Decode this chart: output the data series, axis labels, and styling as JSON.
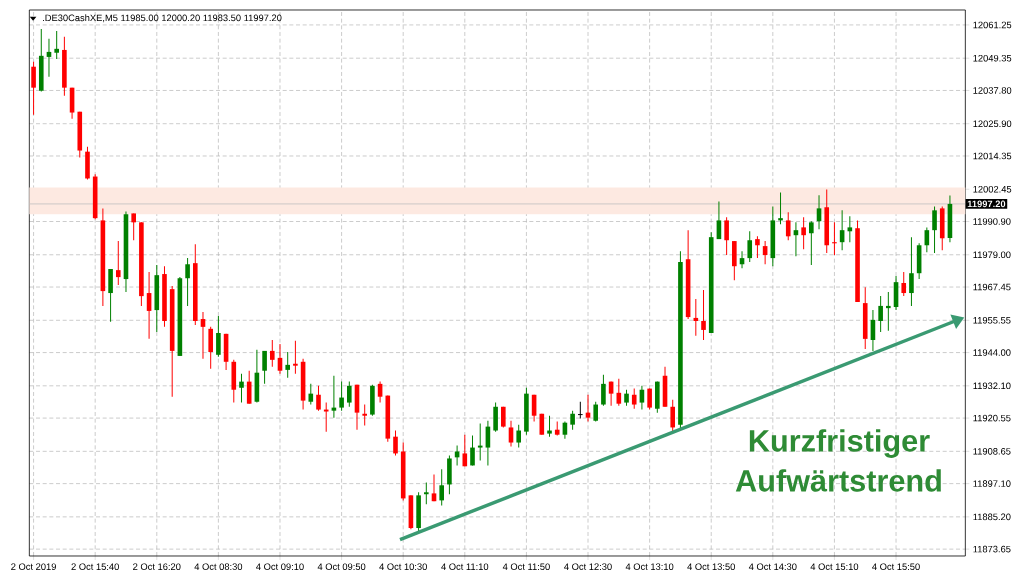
{
  "chart_data": {
    "type": "candlestick",
    "title": ".DE30CashXE,M5  11985.00 12000.20 11983.50 11997.20",
    "categories": [
      "2 Oct 2019",
      null,
      null,
      null,
      null,
      null,
      null,
      null,
      "2 Oct 15:40",
      null,
      null,
      null,
      null,
      null,
      null,
      null,
      "2 Oct 16:20",
      null,
      null,
      null,
      null,
      null,
      null,
      null,
      "4 Oct 08:30",
      null,
      null,
      null,
      null,
      null,
      null,
      null,
      "4 Oct 09:10",
      null,
      null,
      null,
      null,
      null,
      null,
      null,
      "4 Oct 09:50",
      null,
      null,
      null,
      null,
      null,
      null,
      null,
      "4 Oct 10:30",
      null,
      null,
      null,
      null,
      null,
      null,
      null,
      "4 Oct 11:10",
      null,
      null,
      null,
      null,
      null,
      null,
      null,
      "4 Oct 11:50",
      null,
      null,
      null,
      null,
      null,
      null,
      null,
      "4 Oct 12:30",
      null,
      null,
      null,
      null,
      null,
      null,
      null,
      "4 Oct 13:10",
      null,
      null,
      null,
      null,
      null,
      null,
      null,
      "4 Oct 13:50",
      null,
      null,
      null,
      null,
      null,
      null,
      null,
      "4 Oct 14:30",
      null,
      null,
      null,
      null,
      null,
      null,
      null,
      "4 Oct 15:10",
      null,
      null,
      null,
      null,
      null,
      null,
      null,
      "4 Oct 15:50",
      null,
      null,
      null,
      null,
      null,
      null,
      null
    ],
    "ohlc": [
      [
        12046.3,
        12048.1,
        12029.1,
        12038.8
      ],
      [
        12037.7,
        12059.8,
        12037.4,
        12050.2
      ],
      [
        12049.8,
        12056.3,
        12042.7,
        12051.6
      ],
      [
        12051.3,
        12059.1,
        12049.1,
        12052.7
      ],
      [
        12052.3,
        12057.0,
        12035.9,
        12038.8
      ],
      [
        12038.8,
        12038.8,
        12027.7,
        12029.9
      ],
      [
        12030.2,
        12030.2,
        12013.8,
        12016.3
      ],
      [
        12015.9,
        12017.7,
        12005.9,
        12006.3
      ],
      [
        12007.0,
        12007.8,
        11991.7,
        11992.1
      ],
      [
        11991.3,
        11995.6,
        11960.7,
        11966.0
      ],
      [
        11965.3,
        11973.9,
        11955.0,
        11973.9
      ],
      [
        11973.5,
        11983.9,
        11968.2,
        11971.0
      ],
      [
        11970.3,
        11994.5,
        11965.7,
        11993.5
      ],
      [
        11993.8,
        11993.8,
        11984.2,
        11990.6
      ],
      [
        11990.6,
        11990.6,
        11960.7,
        11964.2
      ],
      [
        11965.3,
        11972.8,
        11948.9,
        11958.9
      ],
      [
        11959.2,
        11975.3,
        11951.4,
        11971.7
      ],
      [
        11972.1,
        11974.9,
        11953.2,
        11955.3
      ],
      [
        11966.7,
        11967.8,
        11928.2,
        11944.6
      ],
      [
        11942.8,
        11971.0,
        11942.8,
        11970.6
      ],
      [
        11970.6,
        11977.8,
        11960.7,
        11975.6
      ],
      [
        11976.0,
        11982.8,
        11953.9,
        11955.3
      ],
      [
        11956.0,
        11958.5,
        11941.8,
        11953.2
      ],
      [
        11952.5,
        11953.2,
        11938.2,
        11944.2
      ],
      [
        11943.2,
        11957.1,
        11942.5,
        11951.0
      ],
      [
        11950.7,
        11950.7,
        11937.8,
        11940.7
      ],
      [
        11940.7,
        11941.4,
        11926.1,
        11930.7
      ],
      [
        11931.4,
        11936.4,
        11926.1,
        11933.6
      ],
      [
        11933.6,
        11937.5,
        11925.7,
        11925.7
      ],
      [
        11926.4,
        11945.0,
        11926.1,
        11936.8
      ],
      [
        11937.5,
        11944.6,
        11932.8,
        11944.6
      ],
      [
        11944.6,
        11948.5,
        11938.9,
        11941.4
      ],
      [
        11942.1,
        11947.1,
        11936.4,
        11937.5
      ],
      [
        11937.8,
        11944.2,
        11935.0,
        11939.6
      ],
      [
        11940.0,
        11948.2,
        11936.4,
        11939.3
      ],
      [
        11940.7,
        11941.8,
        11923.6,
        11926.8
      ],
      [
        11926.4,
        11932.8,
        11925.4,
        11929.3
      ],
      [
        11928.9,
        11932.1,
        11923.2,
        11923.6
      ],
      [
        11923.6,
        11926.1,
        11915.7,
        11922.9
      ],
      [
        11923.2,
        11935.7,
        11920.7,
        11924.3
      ],
      [
        11924.3,
        11933.6,
        11923.2,
        11927.9
      ],
      [
        11926.1,
        11933.6,
        11924.6,
        11932.1
      ],
      [
        11932.5,
        11932.5,
        11916.4,
        11922.5
      ],
      [
        11922.1,
        11925.4,
        11917.9,
        11921.4
      ],
      [
        11921.8,
        11932.5,
        11921.4,
        11932.1
      ],
      [
        11932.8,
        11933.6,
        11926.1,
        11928.2
      ],
      [
        11928.6,
        11928.6,
        11912.1,
        11913.2
      ],
      [
        11913.9,
        11916.1,
        11907.2,
        11907.9
      ],
      [
        11908.6,
        11911.8,
        11891.1,
        11891.8
      ],
      [
        11892.9,
        11892.9,
        11880.8,
        11881.2
      ],
      [
        11881.2,
        11894.0,
        11879.3,
        11892.9
      ],
      [
        11893.3,
        11897.5,
        11889.7,
        11894.0
      ],
      [
        11893.6,
        11900.4,
        11890.8,
        11890.8
      ],
      [
        11891.1,
        11902.2,
        11889.3,
        11896.5
      ],
      [
        11896.8,
        11907.2,
        11893.3,
        11906.1
      ],
      [
        11906.5,
        11910.7,
        11903.6,
        11908.6
      ],
      [
        11907.9,
        11914.6,
        11903.3,
        11903.3
      ],
      [
        11903.6,
        11914.3,
        11903.6,
        11910.0
      ],
      [
        11910.0,
        11918.6,
        11905.4,
        11910.7
      ],
      [
        11910.0,
        11919.6,
        11903.6,
        11917.5
      ],
      [
        11916.1,
        11926.1,
        11915.7,
        11924.6
      ],
      [
        11924.6,
        11924.6,
        11917.2,
        11917.5
      ],
      [
        11917.2,
        11919.6,
        11910.4,
        11911.8
      ],
      [
        11911.8,
        11918.2,
        11910.0,
        11916.1
      ],
      [
        11915.7,
        11931.4,
        11914.6,
        11929.3
      ],
      [
        11928.9,
        11928.9,
        11919.3,
        11921.4
      ],
      [
        11922.1,
        11922.1,
        11914.6,
        11914.6
      ],
      [
        11915.0,
        11921.4,
        11913.9,
        11916.1
      ],
      [
        11916.4,
        11919.3,
        11914.3,
        11914.6
      ],
      [
        11914.6,
        11919.3,
        11913.2,
        11918.9
      ],
      [
        11918.2,
        11923.2,
        11916.4,
        11922.1
      ],
      [
        11921.8,
        11926.4,
        11920.4,
        11921.8
      ],
      [
        11922.5,
        11928.9,
        11919.3,
        11920.7
      ],
      [
        11919.6,
        11926.4,
        11919.3,
        11925.4
      ],
      [
        11925.4,
        11936.1,
        11925.0,
        11932.8
      ],
      [
        11933.6,
        11933.6,
        11925.0,
        11929.3
      ],
      [
        11929.6,
        11934.6,
        11925.0,
        11925.7
      ],
      [
        11926.1,
        11930.7,
        11925.0,
        11929.3
      ],
      [
        11928.9,
        11931.1,
        11923.9,
        11925.4
      ],
      [
        11926.1,
        11932.1,
        11923.6,
        11930.7
      ],
      [
        11931.1,
        11931.1,
        11923.6,
        11924.3
      ],
      [
        11923.9,
        11933.6,
        11922.5,
        11933.6
      ],
      [
        11935.7,
        11938.9,
        11924.6,
        11924.6
      ],
      [
        11924.6,
        11927.1,
        11915.7,
        11917.2
      ],
      [
        11918.2,
        11980.3,
        11916.8,
        11976.4
      ],
      [
        11977.4,
        11987.8,
        11956.0,
        11956.7
      ],
      [
        11956.4,
        11963.2,
        11950.0,
        11955.3
      ],
      [
        11955.3,
        11966.4,
        11948.5,
        11952.1
      ],
      [
        11951.0,
        11987.1,
        11951.0,
        11985.3
      ],
      [
        11984.6,
        11998.1,
        11984.6,
        11991.3
      ],
      [
        11991.3,
        11992.4,
        11978.9,
        11984.2
      ],
      [
        11983.9,
        11983.9,
        11969.9,
        11974.9
      ],
      [
        11975.6,
        11980.3,
        11974.2,
        11977.8
      ],
      [
        11977.8,
        11987.4,
        11976.4,
        11984.2
      ],
      [
        11984.6,
        11985.6,
        11977.8,
        11982.4
      ],
      [
        11982.1,
        11983.9,
        11975.6,
        11978.9
      ],
      [
        11977.8,
        11996.3,
        11974.9,
        11991.3
      ],
      [
        11991.3,
        12001.3,
        11989.9,
        11992.1
      ],
      [
        11991.3,
        11994.2,
        11984.2,
        11985.6
      ],
      [
        11986.0,
        11990.6,
        11978.5,
        11987.8
      ],
      [
        11988.8,
        11992.4,
        11981.0,
        11986.0
      ],
      [
        11986.7,
        11991.0,
        11975.3,
        11990.6
      ],
      [
        11991.0,
        12000.3,
        11988.1,
        11995.6
      ],
      [
        11996.0,
        12002.4,
        11979.6,
        11982.4
      ],
      [
        11983.5,
        11990.6,
        11978.9,
        11983.1
      ],
      [
        11983.5,
        11994.9,
        11980.6,
        11987.8
      ],
      [
        11987.4,
        11992.8,
        11983.5,
        11988.8
      ],
      [
        11988.5,
        11991.3,
        11962.1,
        11962.1
      ],
      [
        11961.7,
        11967.4,
        11945.3,
        11948.9
      ],
      [
        11948.5,
        11959.2,
        11944.6,
        11955.7
      ],
      [
        11955.3,
        11964.2,
        11951.4,
        11960.7
      ],
      [
        11959.9,
        11965.7,
        11951.8,
        11960.7
      ],
      [
        11960.3,
        11971.4,
        11959.2,
        11969.2
      ],
      [
        11968.9,
        11972.8,
        11964.2,
        11965.3
      ],
      [
        11965.3,
        11985.3,
        11960.7,
        11972.4
      ],
      [
        11972.4,
        11983.1,
        11970.3,
        11982.4
      ],
      [
        11982.4,
        11988.8,
        11979.9,
        11987.8
      ],
      [
        11987.8,
        11996.3,
        11979.6,
        11994.9
      ],
      [
        11995.6,
        11996.3,
        11980.6,
        11984.9
      ],
      [
        11985.0,
        12000.2,
        11983.5,
        11997.2
      ]
    ],
    "colors": [
      "#ff0000",
      "#008000",
      "#008000",
      "#008000",
      "#ff0000",
      "#ff0000",
      "#ff0000",
      "#ff0000",
      "#ff0000",
      "#ff0000",
      "#008000",
      "#ff0000",
      "#008000",
      "#ff0000",
      "#ff0000",
      "#ff0000",
      "#008000",
      "#ff0000",
      "#ff0000",
      "#008000",
      "#008000",
      "#ff0000",
      "#ff0000",
      "#ff0000",
      "#008000",
      "#ff0000",
      "#ff0000",
      "#008000",
      "#ff0000",
      "#008000",
      "#008000",
      "#ff0000",
      "#ff0000",
      "#008000",
      "#ff0000",
      "#ff0000",
      "#008000",
      "#ff0000",
      "#ff0000",
      "#008000",
      "#008000",
      "#008000",
      "#ff0000",
      "#ff0000",
      "#008000",
      "#ff0000",
      "#ff0000",
      "#ff0000",
      "#ff0000",
      "#ff0000",
      "#008000",
      "#008000",
      "#ff0000",
      "#008000",
      "#008000",
      "#008000",
      "#ff0000",
      "#008000",
      "#008000",
      "#008000",
      "#008000",
      "#ff0000",
      "#ff0000",
      "#008000",
      "#008000",
      "#ff0000",
      "#ff0000",
      "#008000",
      "#ff0000",
      "#008000",
      "#008000",
      "#000000",
      "#ff0000",
      "#008000",
      "#008000",
      "#ff0000",
      "#ff0000",
      "#008000",
      "#ff0000",
      "#008000",
      "#ff0000",
      "#008000",
      "#ff0000",
      "#ff0000",
      "#008000",
      "#ff0000",
      "#ff0000",
      "#ff0000",
      "#008000",
      "#008000",
      "#ff0000",
      "#ff0000",
      "#008000",
      "#008000",
      "#ff0000",
      "#ff0000",
      "#008000",
      "#008000",
      "#ff0000",
      "#008000",
      "#ff0000",
      "#008000",
      "#008000",
      "#ff0000",
      "#ff0000",
      "#008000",
      "#008000",
      "#ff0000",
      "#ff0000",
      "#008000",
      "#008000",
      "#008000",
      "#008000",
      "#ff0000",
      "#008000",
      "#008000",
      "#008000",
      "#008000",
      "#ff0000",
      "#008000"
    ],
    "ylim": [
      11871.2,
      12066.6
    ],
    "yticks": [
      12061.25,
      12049.35,
      {
        "value": 12037.8,
        "label": "12037.80"
      },
      {
        "value": 12025.9,
        "label": "12025.90"
      },
      12014.35,
      12002.45,
      {
        "value": 11990.9,
        "label": "11990.90"
      },
      {
        "value": 11979.0,
        "label": "11979.00"
      },
      11967.45,
      11955.55,
      {
        "value": 11944.0,
        "label": "11944.00"
      },
      {
        "value": 11932.1,
        "label": "11932.10"
      },
      11920.55,
      11908.65,
      {
        "value": 11897.1,
        "label": "11897.10"
      },
      {
        "value": 11885.2,
        "label": "11885.20"
      },
      11873.65
    ],
    "grid": true,
    "ref_lines": [
      {
        "axis": "y",
        "value": 11997.2,
        "label": "11997.20",
        "color": "#c0c0c0"
      }
    ],
    "bands": [
      {
        "axis": "y",
        "from": 11993.5,
        "to": 12003.1,
        "color": "#fde9e1"
      }
    ],
    "annotations": [
      "Kurzfristiger Aufwärtstrend"
    ]
  }
}
